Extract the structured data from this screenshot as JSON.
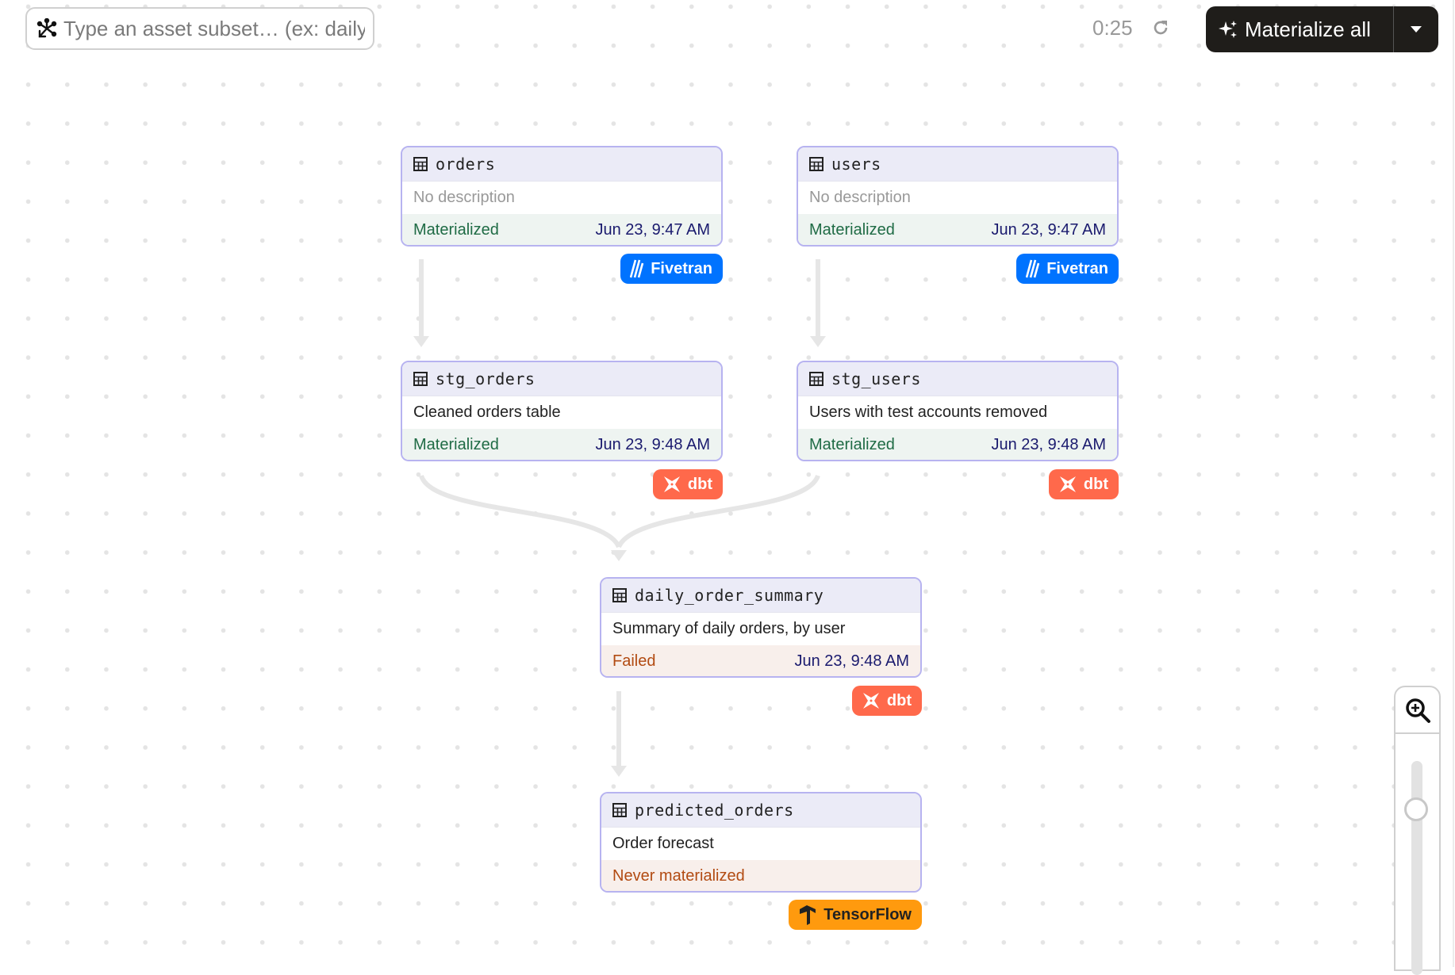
{
  "toolbar": {
    "search_placeholder": "Type an asset subset… (ex: daily",
    "timer": "0:25",
    "materialize_label": "Materialize all"
  },
  "assets": [
    {
      "name": "orders",
      "description": "No description",
      "status": "Materialized",
      "timestamp": "Jun 23, 9:47 AM",
      "kind": "Fivetran"
    },
    {
      "name": "users",
      "description": "No description",
      "status": "Materialized",
      "timestamp": "Jun 23, 9:47 AM",
      "kind": "Fivetran"
    },
    {
      "name": "stg_orders",
      "description": "Cleaned orders table",
      "status": "Materialized",
      "timestamp": "Jun 23, 9:48 AM",
      "kind": "dbt"
    },
    {
      "name": "stg_users",
      "description": "Users with test accounts removed",
      "status": "Materialized",
      "timestamp": "Jun 23, 9:48 AM",
      "kind": "dbt"
    },
    {
      "name": "daily_order_summary",
      "description": "Summary of daily orders, by user",
      "status": "Failed",
      "timestamp": "Jun 23, 9:48 AM",
      "kind": "dbt"
    },
    {
      "name": "predicted_orders",
      "description": "Order forecast",
      "status": "Never materialized",
      "kind": "TensorFlow"
    }
  ],
  "colors": {
    "fivetran": "#0073ff",
    "dbt": "#ff694b",
    "tensorflow": "#ff9a0e",
    "node_border": "#b7b3f0",
    "materialized": "#1f6b45",
    "failed": "#b24b12"
  },
  "zoom": {
    "level_fraction": 0.25
  }
}
